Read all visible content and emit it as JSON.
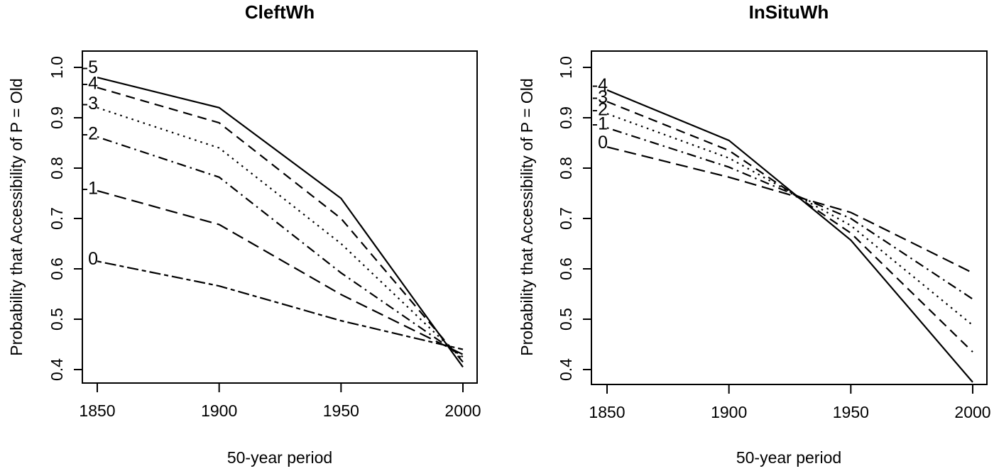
{
  "figure": {
    "background": "#ffffff",
    "stroke_color": "#000000"
  },
  "chart_data": [
    {
      "type": "line",
      "title": "CleftWh",
      "xlabel": "50-year period",
      "ylabel": "Probability that Accessibility of P = Old",
      "x": [
        1850,
        1900,
        1950,
        2000
      ],
      "xtick_labels": [
        "1850",
        "1900",
        "1950",
        "2000"
      ],
      "ytick_labels": [
        "0.4",
        "0.5",
        "0.6",
        "0.7",
        "0.8",
        "0.9",
        "1.0"
      ],
      "ylim": [
        0.4,
        1.0
      ],
      "grid": false,
      "legend": "inline-left-labels",
      "series": [
        {
          "name": "-5",
          "linetype": "solid",
          "label_at": 1.0,
          "values": [
            0.98,
            0.92,
            0.74,
            0.405
          ]
        },
        {
          "name": "-4",
          "linetype": "dashed",
          "label_at": 0.968,
          "values": [
            0.96,
            0.89,
            0.7,
            0.415
          ]
        },
        {
          "name": "-3",
          "linetype": "dotted",
          "label_at": 0.928,
          "values": [
            0.92,
            0.84,
            0.65,
            0.42
          ]
        },
        {
          "name": "-2",
          "linetype": "dotdash",
          "label_at": 0.868,
          "values": [
            0.862,
            0.782,
            0.592,
            0.425
          ]
        },
        {
          "name": "-1",
          "linetype": "longdash",
          "label_at": 0.76,
          "values": [
            0.755,
            0.688,
            0.549,
            0.43
          ]
        },
        {
          "name": "0",
          "linetype": "twodash",
          "label_at": 0.62,
          "values": [
            0.615,
            0.566,
            0.497,
            0.44
          ]
        }
      ]
    },
    {
      "type": "line",
      "title": "InSituWh",
      "xlabel": "50-year period",
      "ylabel": "Probability that Accessibility of P = Old",
      "x": [
        1850,
        1900,
        1950,
        2000
      ],
      "xtick_labels": [
        "1850",
        "1900",
        "1950",
        "2000"
      ],
      "ytick_labels": [
        "0.4",
        "0.5",
        "0.6",
        "0.7",
        "0.8",
        "0.9",
        "1.0"
      ],
      "ylim": [
        0.4,
        1.0
      ],
      "grid": false,
      "legend": "inline-left-labels",
      "series": [
        {
          "name": "-4",
          "linetype": "solid",
          "label_at": 0.965,
          "values": [
            0.955,
            0.855,
            0.657,
            0.375
          ]
        },
        {
          "name": "-3",
          "linetype": "dashed",
          "label_at": 0.941,
          "values": [
            0.932,
            0.835,
            0.671,
            0.435
          ]
        },
        {
          "name": "-2",
          "linetype": "dotted",
          "label_at": 0.916,
          "values": [
            0.908,
            0.82,
            0.686,
            0.488
          ]
        },
        {
          "name": "-1",
          "linetype": "dotdash",
          "label_at": 0.888,
          "values": [
            0.88,
            0.802,
            0.7,
            0.54
          ]
        },
        {
          "name": "0",
          "linetype": "longdash",
          "label_at": 0.851,
          "values": [
            0.842,
            0.782,
            0.712,
            0.592
          ]
        }
      ]
    }
  ]
}
